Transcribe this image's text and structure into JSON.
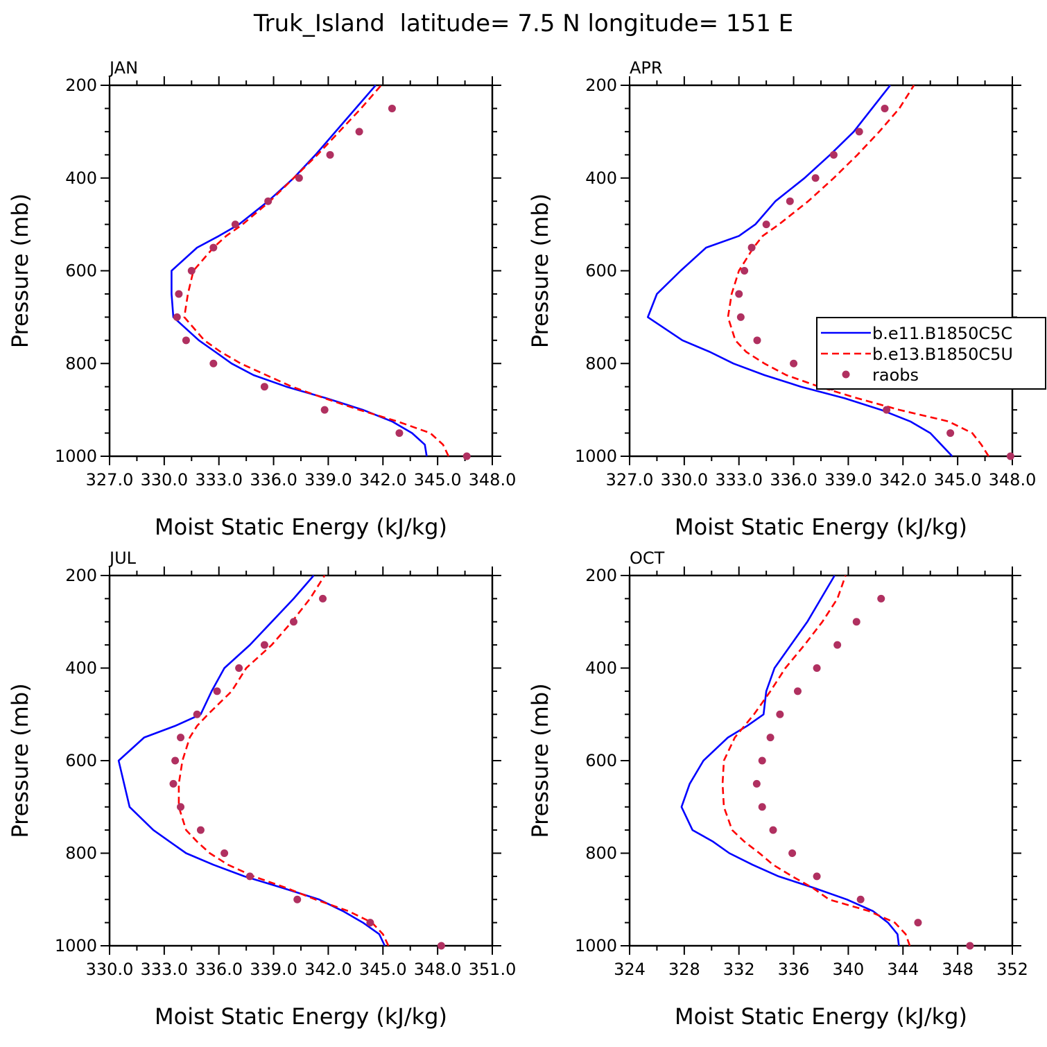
{
  "figure": {
    "title": "Truk_Island  latitude= 7.5 N longitude= 151 E",
    "xlabel": "Moist Static Energy (kJ/kg)",
    "ylabel": "Pressure (mb)"
  },
  "colors": {
    "model_a": "#0000ff",
    "model_b": "#ff0000",
    "raobs": "#b03060",
    "axes": "#000000"
  },
  "legend": {
    "panel": "APR",
    "placement": "right",
    "entries": [
      "b.e11.B1850C5C",
      "b.e13.B1850C5U",
      "raobs"
    ]
  },
  "chart_data": [
    {
      "type": "line",
      "panel": "JAN",
      "title": "JAN",
      "xlim": [
        327,
        348
      ],
      "ylim": [
        1000,
        200
      ],
      "x_ticks": [
        327,
        330,
        333,
        336,
        339,
        342,
        345,
        348
      ],
      "x_tick_labels": [
        "327.0",
        "330.0",
        "333.0",
        "336.0",
        "339.0",
        "342.0",
        "345.0",
        "348.0"
      ],
      "y_ticks": [
        200,
        400,
        600,
        800,
        1000
      ],
      "y_tick_labels": [
        "200",
        "400",
        "600",
        "800",
        "1000"
      ],
      "series": [
        {
          "name": "b.e11.B1850C5C",
          "style": "solid",
          "pressure": [
            1000,
            975,
            950,
            925,
            900,
            875,
            850,
            825,
            800,
            775,
            750,
            700,
            650,
            600,
            550,
            525,
            500,
            450,
            400,
            350,
            300,
            250,
            200
          ],
          "mse": [
            344.4,
            344.3,
            343.6,
            342.5,
            340.9,
            338.9,
            336.7,
            334.9,
            333.7,
            332.8,
            331.9,
            330.5,
            330.4,
            330.4,
            331.8,
            333.0,
            334.1,
            335.7,
            337.1,
            338.3,
            339.4,
            340.5,
            341.6
          ]
        },
        {
          "name": "b.e13.B1850C5U",
          "style": "dashed",
          "pressure": [
            1000,
            975,
            950,
            925,
            900,
            875,
            850,
            825,
            800,
            775,
            750,
            700,
            650,
            600,
            550,
            525,
            500,
            450,
            400,
            350,
            300,
            250,
            200
          ],
          "mse": [
            345.6,
            345.3,
            344.6,
            342.8,
            340.7,
            338.8,
            337.0,
            335.6,
            334.2,
            333.1,
            332.2,
            331.1,
            331.3,
            331.6,
            332.7,
            333.4,
            334.3,
            335.8,
            337.1,
            338.4,
            339.6,
            340.8,
            341.9
          ]
        },
        {
          "name": "raobs",
          "style": "markers",
          "pressure": [
            1000,
            950,
            900,
            850,
            800,
            750,
            700,
            650,
            600,
            550,
            500,
            450,
            400,
            350,
            300,
            250
          ],
          "mse": [
            346.6,
            342.9,
            338.8,
            335.5,
            332.7,
            331.2,
            330.7,
            330.8,
            331.5,
            332.7,
            333.9,
            335.7,
            337.4,
            339.1,
            340.7,
            342.5
          ]
        }
      ]
    },
    {
      "type": "line",
      "panel": "APR",
      "title": "APR",
      "xlim": [
        327,
        348
      ],
      "ylim": [
        1000,
        200
      ],
      "x_ticks": [
        327,
        330,
        333,
        336,
        339,
        342,
        345,
        348
      ],
      "x_tick_labels": [
        "327.0",
        "330.0",
        "333.0",
        "336.0",
        "339.0",
        "342.0",
        "345.0",
        "348.0"
      ],
      "y_ticks": [
        200,
        400,
        600,
        800,
        1000
      ],
      "y_tick_labels": [
        "200",
        "400",
        "600",
        "800",
        "1000"
      ],
      "series": [
        {
          "name": "b.e11.B1850C5C",
          "style": "solid",
          "pressure": [
            1000,
            975,
            950,
            925,
            900,
            875,
            850,
            825,
            800,
            775,
            750,
            700,
            650,
            600,
            550,
            525,
            500,
            450,
            400,
            350,
            300,
            250,
            200
          ],
          "mse": [
            344.7,
            344.1,
            343.5,
            342.4,
            340.8,
            338.8,
            336.4,
            334.4,
            332.7,
            331.4,
            329.9,
            328.0,
            328.5,
            329.8,
            331.2,
            333.0,
            333.9,
            335.0,
            336.6,
            338.0,
            339.3,
            340.3,
            341.3
          ]
        },
        {
          "name": "b.e13.B1850C5U",
          "style": "dashed",
          "pressure": [
            1000,
            975,
            950,
            925,
            900,
            875,
            850,
            825,
            800,
            775,
            750,
            700,
            650,
            600,
            550,
            525,
            500,
            450,
            400,
            350,
            300,
            250,
            200
          ],
          "mse": [
            346.7,
            346.3,
            345.8,
            344.5,
            341.8,
            339.5,
            337.4,
            335.6,
            334.4,
            333.4,
            332.8,
            332.4,
            332.6,
            333.0,
            333.8,
            334.3,
            335.2,
            336.8,
            338.2,
            339.5,
            340.7,
            341.8,
            342.6
          ]
        },
        {
          "name": "raobs",
          "style": "markers",
          "pressure": [
            1000,
            950,
            900,
            850,
            800,
            750,
            700,
            650,
            600,
            550,
            500,
            450,
            400,
            350,
            300,
            250
          ],
          "mse": [
            347.9,
            344.6,
            341.1,
            338.1,
            336.0,
            334.0,
            333.1,
            333.0,
            333.3,
            333.7,
            334.5,
            335.8,
            337.2,
            338.2,
            339.6,
            341.0
          ]
        }
      ]
    },
    {
      "type": "line",
      "panel": "JUL",
      "title": "JUL",
      "xlim": [
        330,
        351
      ],
      "ylim": [
        1000,
        200
      ],
      "x_ticks": [
        330,
        333,
        336,
        339,
        342,
        345,
        348,
        351
      ],
      "x_tick_labels": [
        "330.0",
        "333.0",
        "336.0",
        "339.0",
        "342.0",
        "345.0",
        "348.0",
        "351.0"
      ],
      "y_ticks": [
        200,
        400,
        600,
        800,
        1000
      ],
      "y_tick_labels": [
        "200",
        "400",
        "600",
        "800",
        "1000"
      ],
      "series": [
        {
          "name": "b.e11.B1850C5C",
          "style": "solid",
          "pressure": [
            1000,
            975,
            950,
            925,
            900,
            875,
            850,
            825,
            800,
            775,
            750,
            700,
            650,
            600,
            550,
            525,
            500,
            450,
            400,
            350,
            300,
            250,
            200
          ],
          "mse": [
            345.1,
            344.8,
            343.9,
            342.8,
            341.5,
            339.5,
            337.4,
            335.7,
            334.2,
            333.3,
            332.4,
            331.1,
            330.8,
            330.5,
            331.9,
            333.6,
            335.0,
            335.6,
            336.3,
            337.7,
            338.9,
            340.1,
            341.2
          ]
        },
        {
          "name": "b.e13.B1850C5U",
          "style": "dashed",
          "pressure": [
            1000,
            975,
            950,
            925,
            900,
            875,
            850,
            825,
            800,
            775,
            750,
            700,
            650,
            600,
            550,
            525,
            500,
            450,
            400,
            350,
            300,
            250,
            200
          ],
          "mse": [
            345.3,
            345.0,
            344.4,
            343.1,
            341.3,
            339.7,
            337.9,
            336.5,
            335.5,
            334.8,
            334.2,
            333.8,
            333.8,
            334.0,
            334.4,
            334.8,
            335.4,
            336.7,
            337.5,
            338.9,
            340.0,
            341.0,
            341.8
          ]
        },
        {
          "name": "raobs",
          "style": "markers",
          "pressure": [
            1000,
            950,
            900,
            850,
            800,
            750,
            700,
            650,
            600,
            550,
            500,
            450,
            400,
            350,
            300,
            250
          ],
          "mse": [
            348.2,
            344.3,
            340.3,
            337.7,
            336.3,
            335.0,
            333.9,
            333.5,
            333.6,
            333.9,
            334.8,
            335.9,
            337.1,
            338.5,
            340.1,
            341.7
          ]
        }
      ]
    },
    {
      "type": "line",
      "panel": "OCT",
      "title": "OCT",
      "xlim": [
        324,
        352
      ],
      "ylim": [
        1000,
        200
      ],
      "x_ticks": [
        324,
        328,
        332,
        336,
        340,
        344,
        348,
        352
      ],
      "x_tick_labels": [
        "324",
        "328",
        "332",
        "336",
        "340",
        "344",
        "348",
        "352"
      ],
      "y_ticks": [
        200,
        400,
        600,
        800,
        1000
      ],
      "y_tick_labels": [
        "200",
        "400",
        "600",
        "800",
        "1000"
      ],
      "series": [
        {
          "name": "b.e11.B1850C5C",
          "style": "solid",
          "pressure": [
            1000,
            975,
            950,
            925,
            900,
            875,
            850,
            825,
            800,
            775,
            750,
            700,
            650,
            600,
            550,
            525,
            500,
            450,
            400,
            350,
            300,
            250,
            200
          ],
          "mse": [
            343.7,
            343.6,
            342.9,
            341.8,
            339.9,
            337.5,
            334.9,
            333.0,
            331.3,
            330.1,
            328.6,
            327.8,
            328.4,
            329.4,
            331.2,
            332.6,
            333.8,
            334.0,
            334.6,
            335.8,
            337.0,
            338.0,
            339.0
          ]
        },
        {
          "name": "b.e13.B1850C5U",
          "style": "dashed",
          "pressure": [
            1000,
            975,
            950,
            925,
            900,
            875,
            850,
            825,
            800,
            775,
            750,
            700,
            650,
            600,
            550,
            525,
            500,
            450,
            400,
            350,
            300,
            250,
            200
          ],
          "mse": [
            344.5,
            344.2,
            343.4,
            341.5,
            338.6,
            337.4,
            335.9,
            334.5,
            333.5,
            332.4,
            331.5,
            330.9,
            330.8,
            330.9,
            331.7,
            332.4,
            333.1,
            334.3,
            335.4,
            336.8,
            338.1,
            339.2,
            339.8
          ]
        },
        {
          "name": "raobs",
          "style": "markers",
          "pressure": [
            1000,
            950,
            900,
            850,
            800,
            750,
            700,
            650,
            600,
            550,
            500,
            450,
            400,
            350,
            300,
            250
          ],
          "mse": [
            348.9,
            345.1,
            340.9,
            337.7,
            335.9,
            334.5,
            333.7,
            333.3,
            333.7,
            334.3,
            335.0,
            336.3,
            337.7,
            339.2,
            340.6,
            342.4
          ]
        }
      ]
    }
  ]
}
